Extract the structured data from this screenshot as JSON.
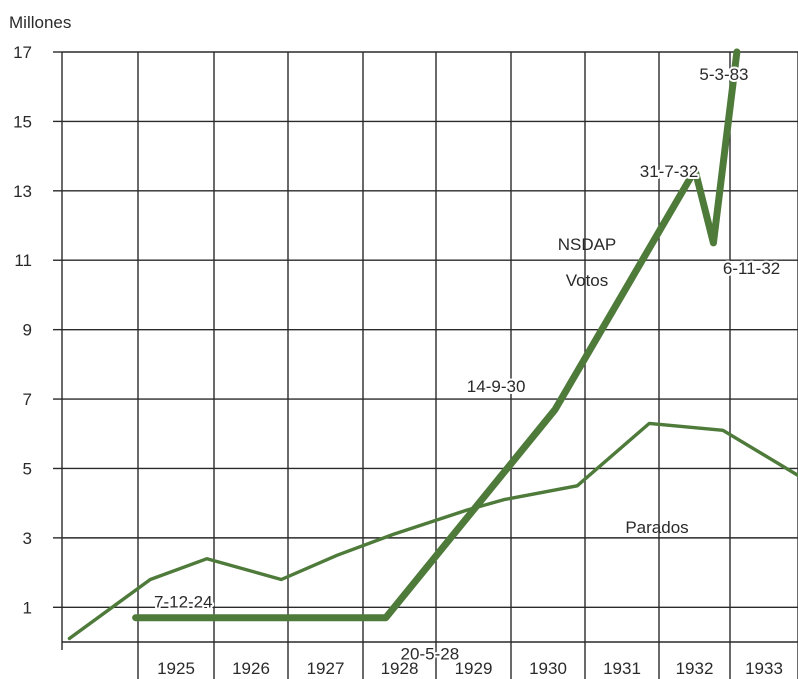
{
  "chart_data": {
    "type": "line",
    "ylabel": "Millones",
    "ylim": [
      0,
      17
    ],
    "yticks": [
      1,
      3,
      5,
      7,
      9,
      11,
      13,
      15,
      17
    ],
    "xlim": [
      1924.0,
      1934.0
    ],
    "years": [
      "1925",
      "1926",
      "1927",
      "1928",
      "1929",
      "1930",
      "1931",
      "1932",
      "1933"
    ],
    "grid": true,
    "colors": {
      "nsdap": "#4e7a3a",
      "parados": "#4e7a3a",
      "grid": "#2a2a2a"
    },
    "series": [
      {
        "key": "nsdap",
        "label_lines": [
          "NSDAP",
          "Votos"
        ],
        "points": [
          {
            "x": 1925.0,
            "y": 0.7
          },
          {
            "x": 1928.4,
            "y": 0.7
          },
          {
            "x": 1930.7,
            "y": 6.7
          },
          {
            "x": 1932.6,
            "y": 13.6
          },
          {
            "x": 1932.85,
            "y": 11.5
          },
          {
            "x": 1933.17,
            "y": 17.0
          }
        ]
      },
      {
        "key": "parados",
        "label_lines": [
          "Parados"
        ],
        "points": [
          {
            "x": 1924.1,
            "y": 0.1
          },
          {
            "x": 1925.2,
            "y": 1.8
          },
          {
            "x": 1925.97,
            "y": 2.4
          },
          {
            "x": 1926.98,
            "y": 1.8
          },
          {
            "x": 1927.74,
            "y": 2.5
          },
          {
            "x": 1928.5,
            "y": 3.1
          },
          {
            "x": 1929.5,
            "y": 3.8
          },
          {
            "x": 1930.0,
            "y": 4.1
          },
          {
            "x": 1931.0,
            "y": 4.5
          },
          {
            "x": 1931.98,
            "y": 6.3
          },
          {
            "x": 1932.98,
            "y": 6.1
          },
          {
            "x": 1934.0,
            "y": 4.8
          }
        ]
      }
    ],
    "annotations": [
      {
        "text": "7-12-24",
        "x": 1925.25,
        "y": 1.0
      },
      {
        "text": "20-5-28",
        "x": 1928.6,
        "y": -0.5
      },
      {
        "text": "14-9-30",
        "x": 1929.5,
        "y": 7.2
      },
      {
        "text": "31-7-32",
        "x": 1931.85,
        "y": 13.4
      },
      {
        "text": "6-11-32",
        "x": 1932.98,
        "y": 10.6
      },
      {
        "text": "5-3-83",
        "x": 1932.66,
        "y": 16.2
      }
    ]
  }
}
